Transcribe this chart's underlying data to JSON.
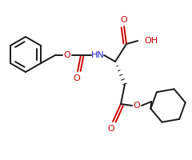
{
  "bg_color": "#ffffff",
  "bond_color": "#1a1a1a",
  "o_color": "#cc0000",
  "n_color": "#2222cc",
  "lw": 1.4,
  "figsize": [
    2.4,
    2.0
  ],
  "dpi": 100,
  "xlim": [
    0,
    240
  ],
  "ylim": [
    0,
    200
  ]
}
